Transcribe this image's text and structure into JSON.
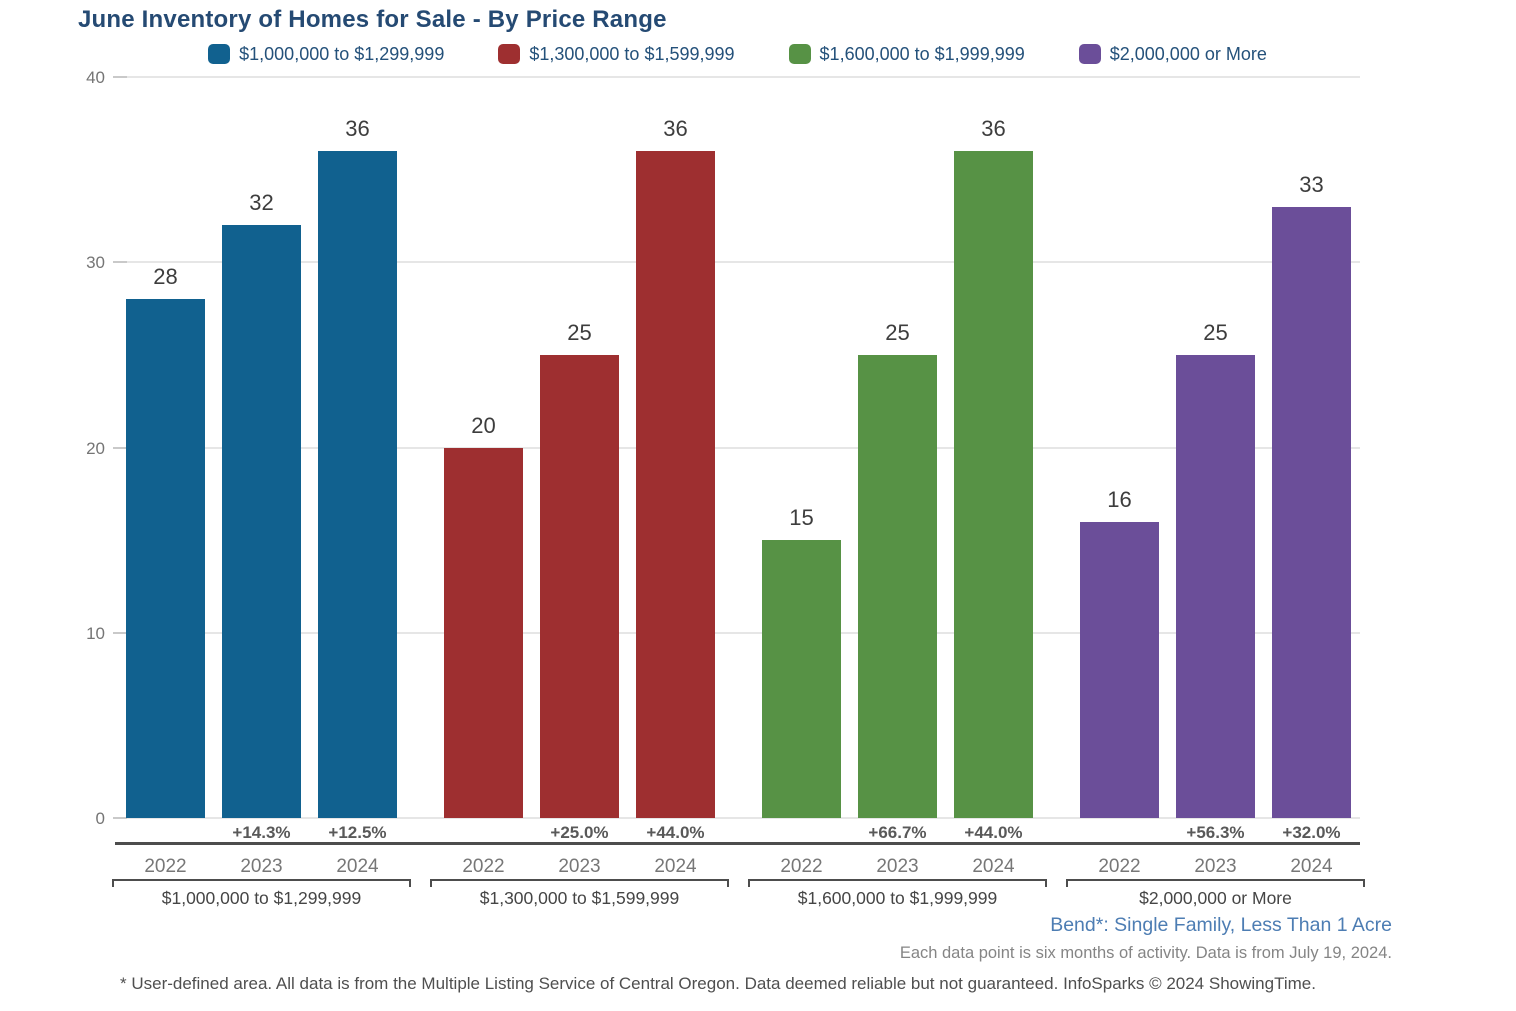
{
  "title": "June Inventory of Homes for Sale - By Price Range",
  "notes": {
    "area": "Bend*: Single Family, Less Than 1 Acre",
    "data_note": "Each data point is six months of activity. Data is from July 19, 2024.",
    "disclaimer": "* User-defined area. All data is from the Multiple Listing Service of Central Oregon. Data deemed reliable but not guaranteed. InfoSparks © 2024 ShowingTime."
  },
  "colors": {
    "title_text": "#254a73",
    "legend_text": "#24517a",
    "axis_line": "#4d4d4d",
    "gridline": "#e6e6e6",
    "area_note_text": "#4d7db3"
  },
  "chart_data": {
    "type": "bar",
    "title": "June Inventory of Homes for Sale - By Price Range",
    "categories": [
      "2022",
      "2023",
      "2024"
    ],
    "ylim": [
      0,
      40
    ],
    "yticks": [
      0,
      10,
      20,
      30,
      40
    ],
    "grid": true,
    "legend_position": "top",
    "series": [
      {
        "name": "$1,000,000 to $1,299,999",
        "color": "#11618f",
        "values": [
          28,
          32,
          36
        ],
        "pct_change": [
          "+14.3%",
          "+12.5%"
        ]
      },
      {
        "name": "$1,300,000 to $1,599,999",
        "color": "#9e2f30",
        "values": [
          20,
          25,
          36
        ],
        "pct_change": [
          "+25.0%",
          "+44.0%"
        ]
      },
      {
        "name": "$1,600,000 to $1,999,999",
        "color": "#579245",
        "values": [
          15,
          25,
          36
        ],
        "pct_change": [
          "+66.7%",
          "+44.0%"
        ]
      },
      {
        "name": "$2,000,000 or More",
        "color": "#6b4e99",
        "values": [
          16,
          25,
          33
        ],
        "pct_change": [
          "+56.3%",
          "+32.0%"
        ]
      }
    ]
  }
}
